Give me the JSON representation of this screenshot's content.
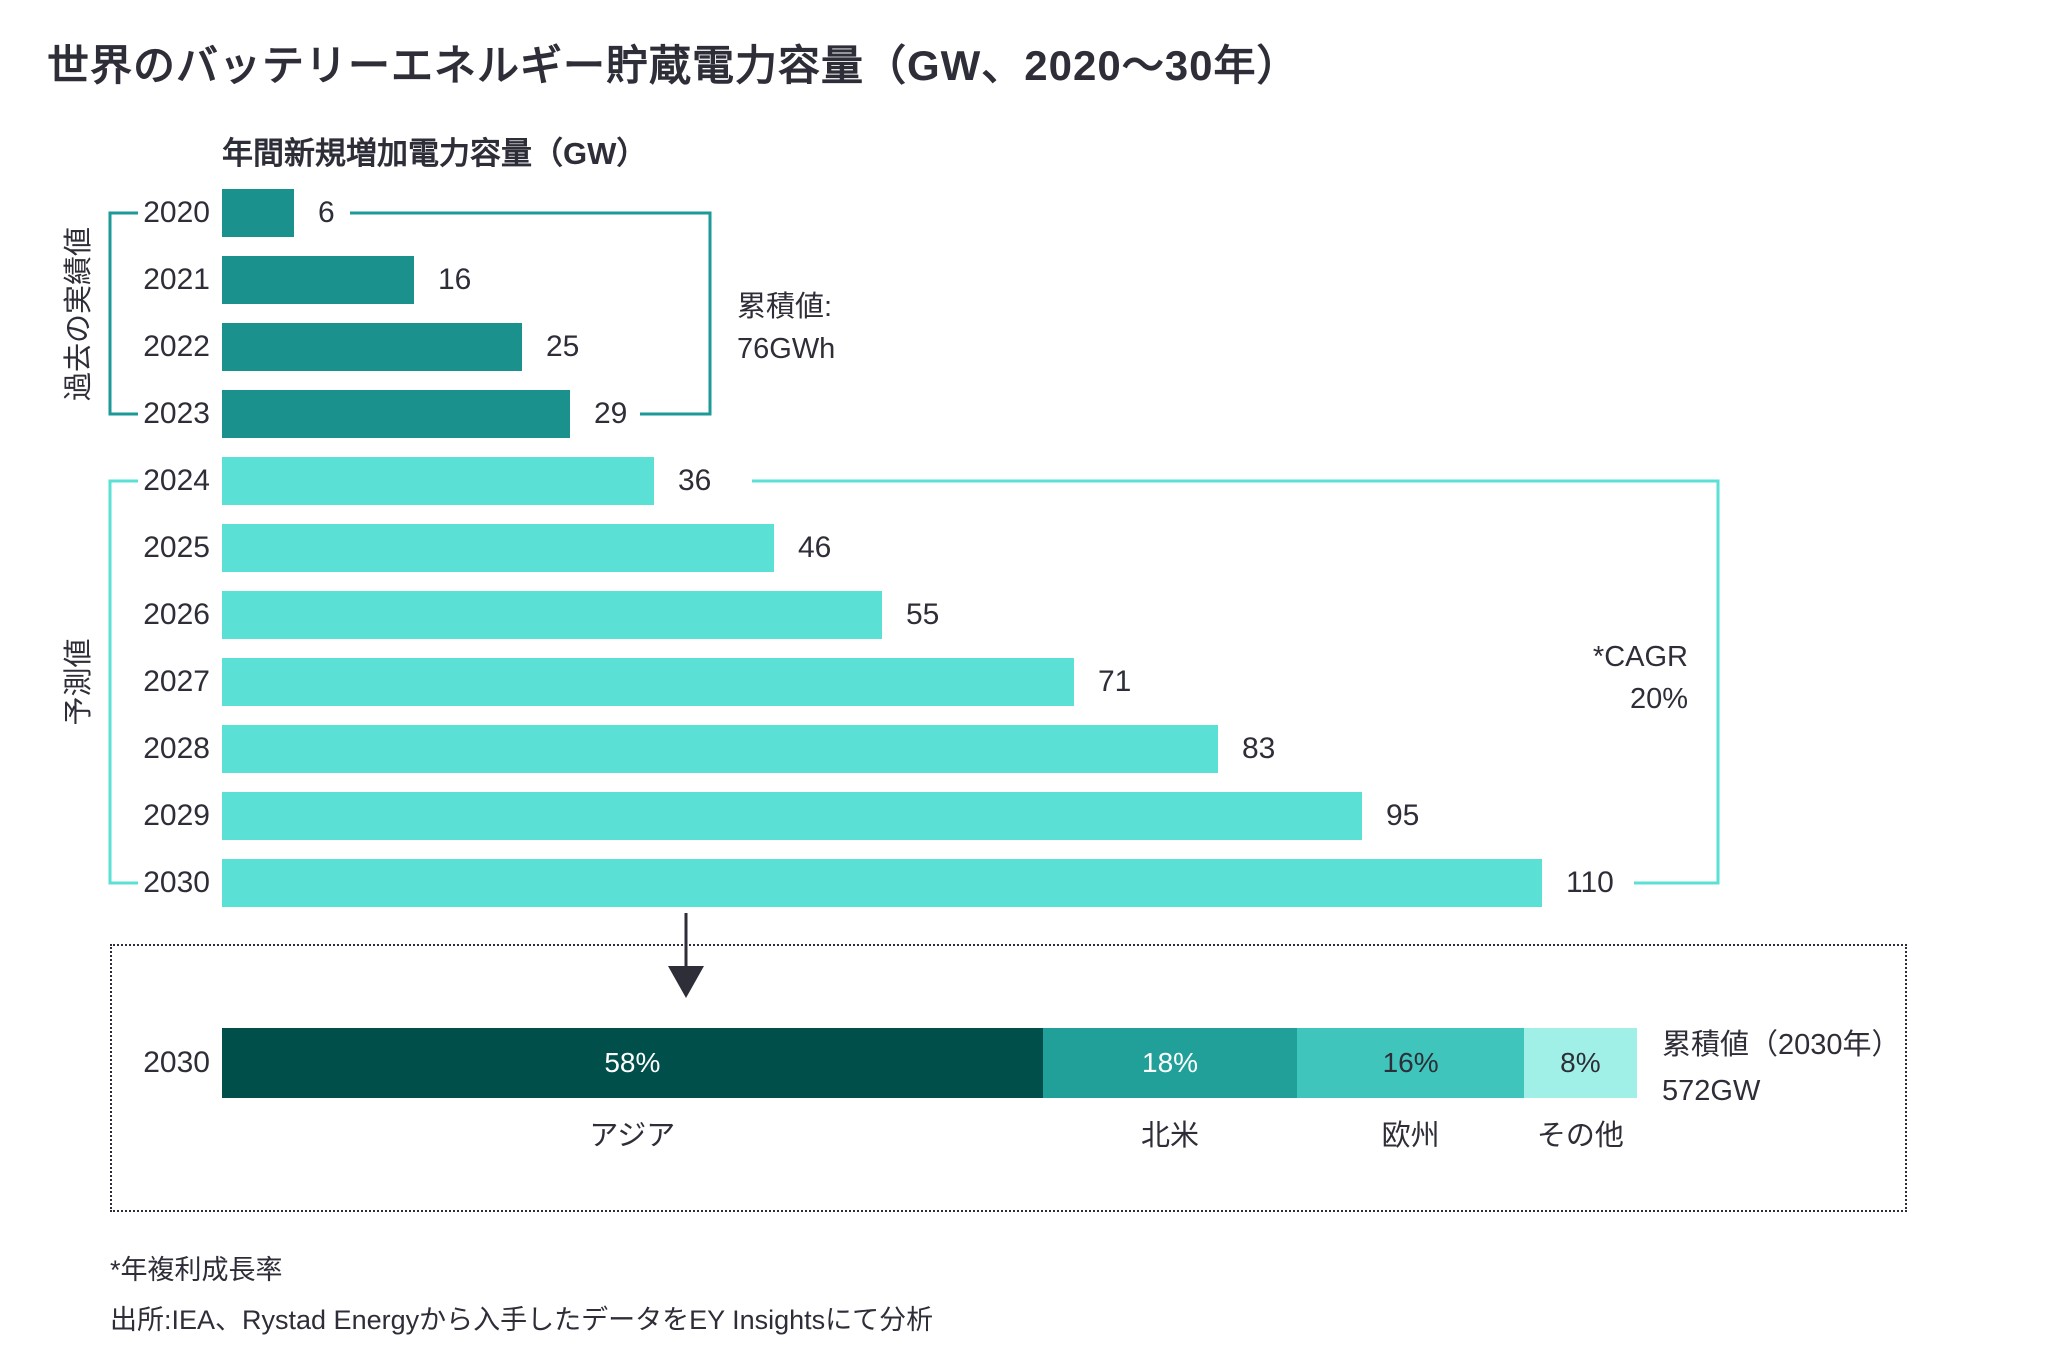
{
  "title": "世界のバッテリーエネルギー貯蔵電力容量（GW、2020～30年）",
  "colors": {
    "ink": "#2e2e38",
    "historical_bar": "#1a918d",
    "forecast_bar": "#5be0d5",
    "historical_bracket": "#1b9a97",
    "forecast_bracket": "#5be0d5",
    "white": "#ffffff"
  },
  "chart_data": [
    {
      "type": "bar",
      "orientation": "horizontal",
      "title": "年間新規増加電力容量（GW）",
      "unit": "GW",
      "xlim": [
        0,
        115
      ],
      "grid": false,
      "value_labels": true,
      "categories": [
        "2020",
        "2021",
        "2022",
        "2023",
        "2024",
        "2025",
        "2026",
        "2027",
        "2028",
        "2029",
        "2030"
      ],
      "series": [
        {
          "name": "過去の実績値",
          "years": [
            "2020",
            "2021",
            "2022",
            "2023"
          ],
          "values": [
            6,
            16,
            25,
            29
          ],
          "color": "#1a918d"
        },
        {
          "name": "予測値",
          "years": [
            "2024",
            "2025",
            "2026",
            "2027",
            "2028",
            "2029",
            "2030"
          ],
          "values": [
            36,
            46,
            55,
            71,
            83,
            95,
            110
          ],
          "color": "#5be0d5"
        }
      ],
      "annotations": {
        "cumulative_label": "累積値:",
        "cumulative_value": "76GWh",
        "cagr_label": "*CAGR",
        "cagr_value": "20%"
      }
    },
    {
      "type": "stacked-bar",
      "orientation": "horizontal",
      "year_label": "2030",
      "unit": "%",
      "segments": [
        {
          "label": "アジア",
          "pct": 58,
          "pct_label": "58%",
          "color": "#004f4b",
          "text_color": "#ffffff"
        },
        {
          "label": "北米",
          "pct": 18,
          "pct_label": "18%",
          "color": "#21a099",
          "text_color": "#ffffff"
        },
        {
          "label": "欧州",
          "pct": 16,
          "pct_label": "16%",
          "color": "#40c5bc",
          "text_color": "#2e2e38"
        },
        {
          "label": "その他",
          "pct": 8,
          "pct_label": "8%",
          "color": "#a0f0e7",
          "text_color": "#2e2e38"
        }
      ],
      "cumulative_label": "累積値（2030年）",
      "cumulative_value": "572GW"
    }
  ],
  "footnotes": {
    "cagr_note": "*年複利成長率",
    "source": "出所:IEA、Rystad Energyから入手したデータをEY Insightsにて分析"
  }
}
